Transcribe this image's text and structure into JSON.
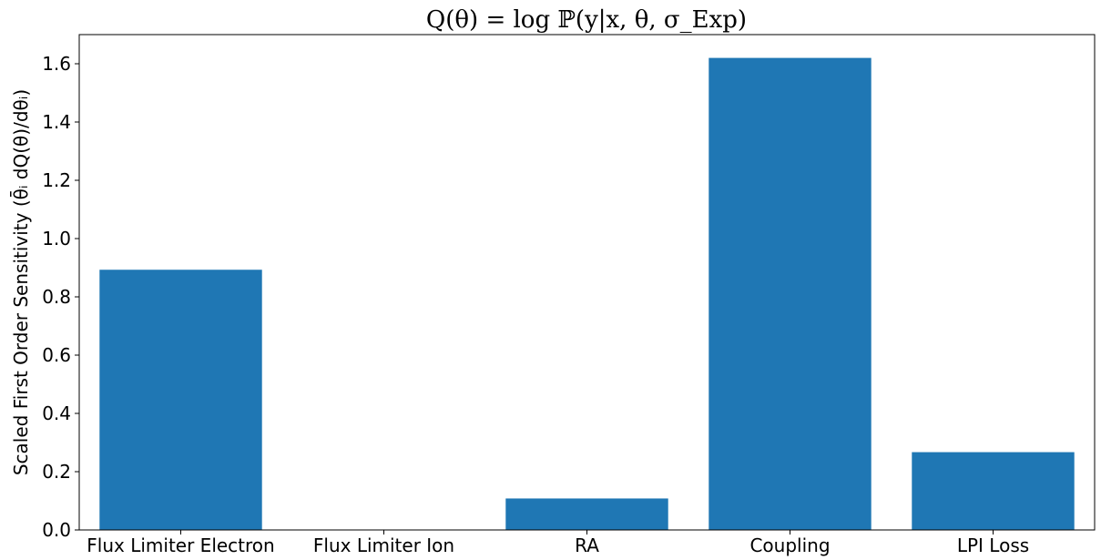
{
  "chart_data": {
    "type": "bar",
    "title": "Q(θ) = log ℙ(y|x, θ, σ_Exp)",
    "xlabel": "",
    "ylabel": "Scaled First Order Sensitivity (θ̄ᵢ dQ(θ)/dθᵢ)",
    "categories": [
      "Flux Limiter Electron",
      "Flux Limiter Ion",
      "RA",
      "Coupling",
      "LPI Loss"
    ],
    "values": [
      0.893,
      0.0,
      0.108,
      1.62,
      0.267
    ],
    "ylim": [
      0,
      1.7
    ],
    "yticks": [
      "0.0",
      "0.2",
      "0.4",
      "0.6",
      "0.8",
      "1.0",
      "1.2",
      "1.4",
      "1.6"
    ],
    "bar_color": "#1f77b4",
    "grid": false,
    "legend": "none"
  }
}
